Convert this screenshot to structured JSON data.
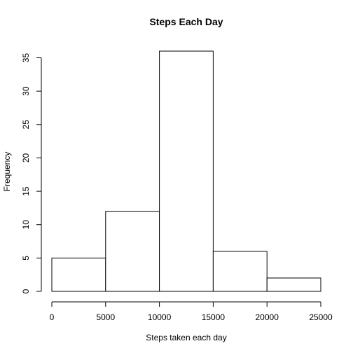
{
  "chart_data": {
    "type": "bar",
    "subtype": "histogram",
    "title": "Steps Each Day",
    "xlabel": "Steps taken each day",
    "ylabel": "Frequency",
    "bins": [
      {
        "from": 0,
        "to": 5000,
        "count": 5
      },
      {
        "from": 5000,
        "to": 10000,
        "count": 12
      },
      {
        "from": 10000,
        "to": 15000,
        "count": 36
      },
      {
        "from": 15000,
        "to": 20000,
        "count": 6
      },
      {
        "from": 20000,
        "to": 25000,
        "count": 2
      }
    ],
    "xlim": [
      0,
      25000
    ],
    "ylim": [
      0,
      36
    ],
    "x_ticks": [
      0,
      5000,
      10000,
      15000,
      20000,
      25000
    ],
    "y_ticks": [
      0,
      5,
      10,
      15,
      20,
      25,
      30,
      35
    ],
    "grid": false,
    "legend": "none",
    "colors": {
      "bar_fill": "#ffffff",
      "bar_stroke": "#000000"
    }
  }
}
